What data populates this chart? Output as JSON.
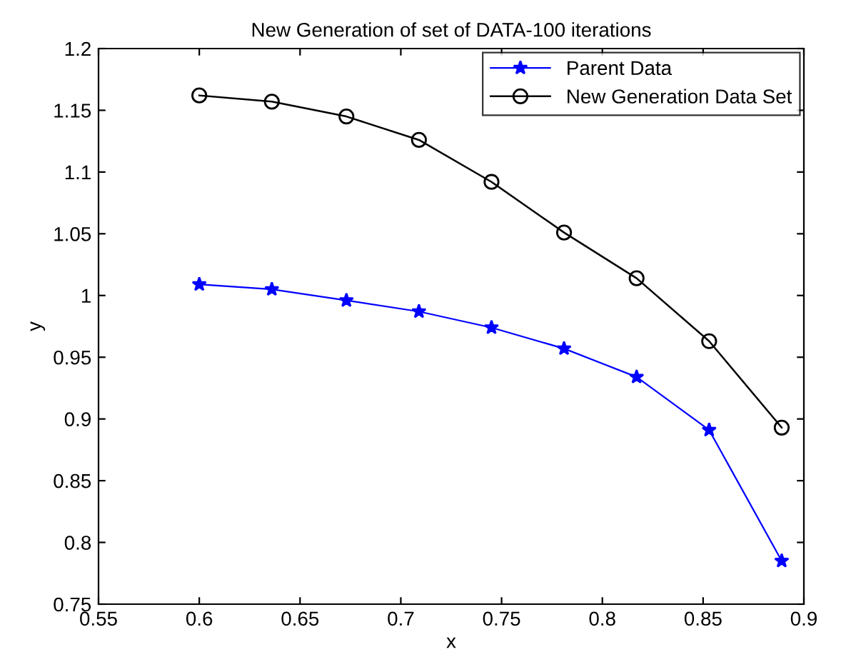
{
  "chart_data": {
    "type": "line",
    "title": "New Generation of set of DATA-100 iterations",
    "xlabel": "x",
    "ylabel": "y",
    "x": [
      0.6,
      0.636,
      0.673,
      0.709,
      0.745,
      0.781,
      0.817,
      0.853,
      0.889
    ],
    "series": [
      {
        "name": "Parent Data",
        "color": "#0000ff",
        "values": [
          1.009,
          1.005,
          0.996,
          0.987,
          0.974,
          0.957,
          0.934,
          0.891,
          0.785
        ],
        "marker": "star"
      },
      {
        "name": "New Generation Data Set",
        "color": "#000000",
        "values": [
          1.162,
          1.157,
          1.145,
          1.126,
          1.092,
          1.051,
          1.014,
          0.963,
          0.893
        ],
        "marker": "circle"
      }
    ],
    "xlim": [
      0.55,
      0.9
    ],
    "xticks": [
      0.55,
      0.6,
      0.65,
      0.7,
      0.75,
      0.8,
      0.85,
      0.9
    ],
    "ylim": [
      0.75,
      1.2
    ],
    "yticks": [
      0.75,
      0.8,
      0.85,
      0.9,
      0.95,
      1,
      1.05,
      1.1,
      1.15,
      1.2
    ],
    "grid": false,
    "legend": "top right",
    "line_style": "solid"
  }
}
